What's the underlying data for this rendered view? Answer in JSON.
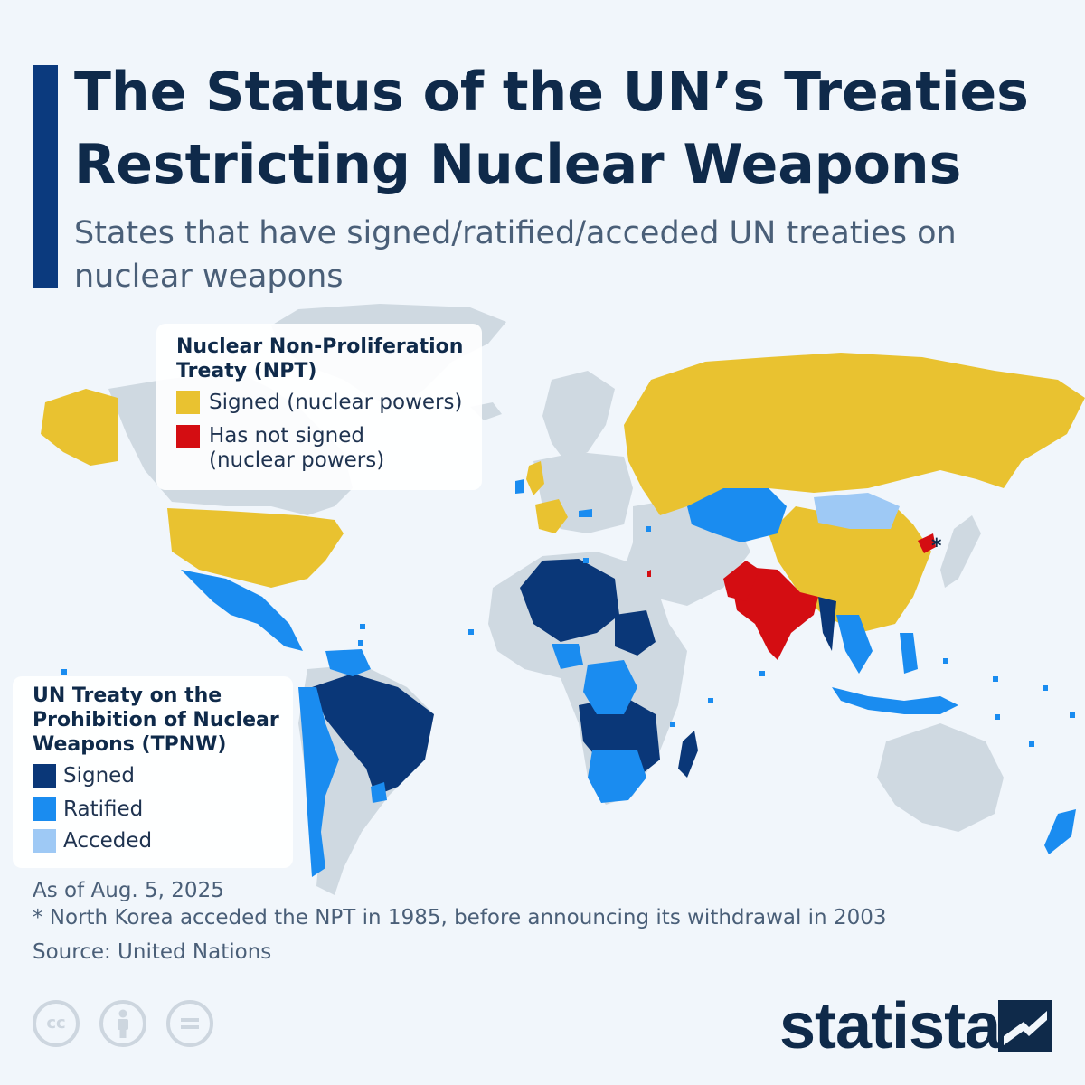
{
  "title": "The Status of the UN’s Treaties Restricting Nuclear Weapons",
  "subtitle": "States that have signed/ratified/acceded UN treaties on nuclear weapons",
  "legend_npt": {
    "title": "Nuclear Non-Proliferation Treaty (NPT)",
    "items": [
      {
        "label": "Signed (nuclear powers)",
        "color": "#e9c230"
      },
      {
        "label_line1": "Has not signed",
        "label_line2": "(nuclear powers)",
        "color": "#d40d12"
      }
    ]
  },
  "legend_tpnw": {
    "title": "UN Treaty on the Prohibition of Nuclear Weapons (TPNW)",
    "items": [
      {
        "label": "Signed",
        "color": "#0a3778"
      },
      {
        "label": "Ratified",
        "color": "#1a8cf0"
      },
      {
        "label": "Acceded",
        "color": "#9ec9f5"
      }
    ]
  },
  "map": {
    "asterisk": "*",
    "other_color": "#cfd9e1"
  },
  "footnotes": {
    "as_of": "As of Aug. 5, 2025",
    "note": "* North Korea acceded the NPT in 1985, before announcing its withdrawal in 2003",
    "source": "Source: United Nations"
  },
  "brand": {
    "name": "statista",
    "license_icons": [
      "cc-icon",
      "by-icon",
      "nd-icon"
    ]
  }
}
